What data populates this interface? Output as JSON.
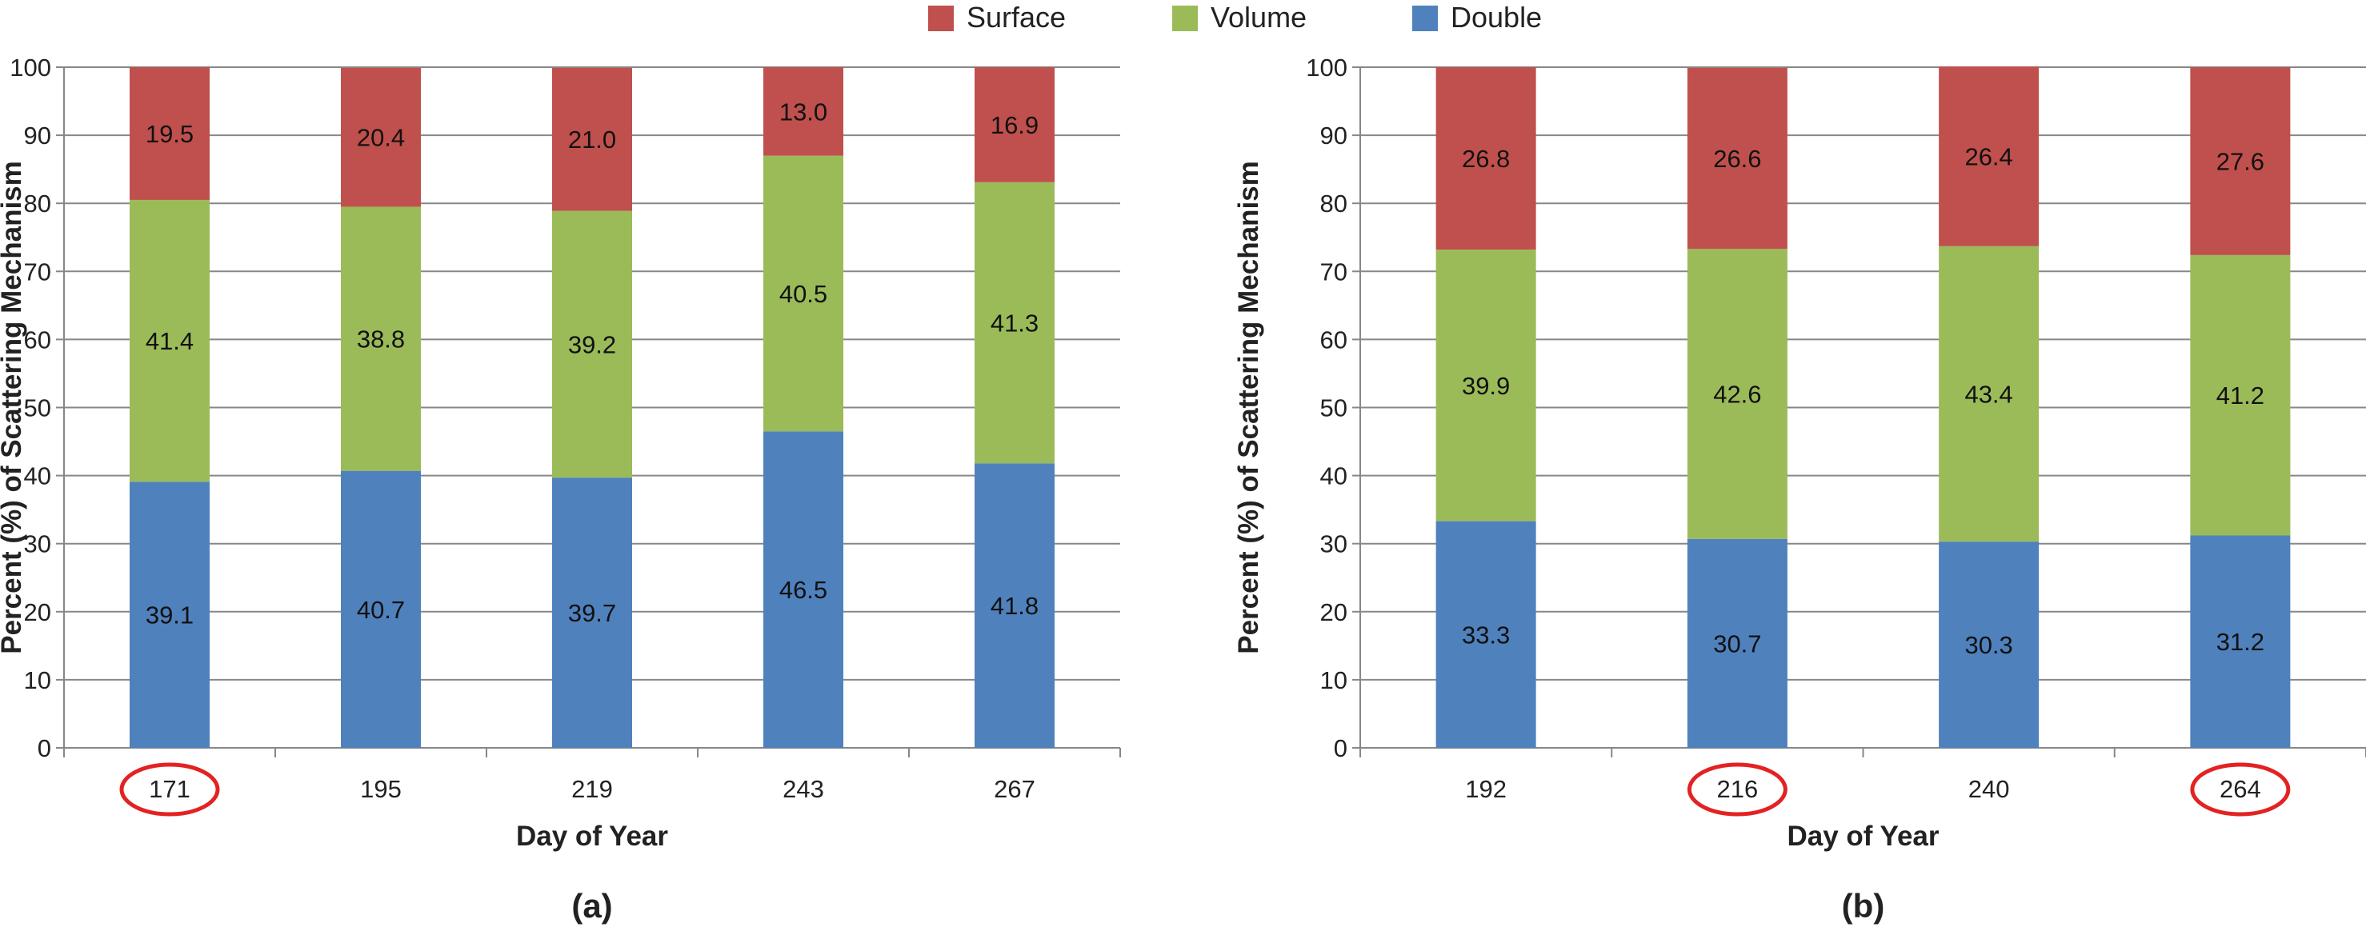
{
  "legend": {
    "entries": [
      {
        "name": "Surface",
        "color": "#C0504D"
      },
      {
        "name": "Volume",
        "color": "#9BBB59"
      },
      {
        "name": "Double",
        "color": "#4F81BD"
      }
    ],
    "placement": "top-center"
  },
  "colors": {
    "double": "#4F81BD",
    "volume": "#9BBB59",
    "surface": "#C0504D",
    "highlight_circle": "#E32222",
    "gridline": "#878787"
  },
  "chart_data": [
    {
      "type": "bar",
      "stacked": true,
      "panel_label": "(a)",
      "title": "",
      "xlabel": "Day of Year",
      "ylabel": "Percent (%) of Scattering Mechanism",
      "ylim": [
        0,
        100
      ],
      "yticks": [
        "0",
        "10",
        "20",
        "30",
        "40",
        "50",
        "60",
        "70",
        "80",
        "90",
        "100"
      ],
      "grid": true,
      "categories": [
        "171",
        "195",
        "219",
        "243",
        "267"
      ],
      "highlighted_categories": [
        "171"
      ],
      "series": [
        {
          "name": "Double",
          "values": [
            39.1,
            40.7,
            39.7,
            46.5,
            41.8
          ],
          "labels": [
            "39.1",
            "40.7",
            "39.7",
            "46.5",
            "41.8"
          ]
        },
        {
          "name": "Volume",
          "values": [
            41.4,
            38.8,
            39.2,
            40.5,
            41.3
          ],
          "labels": [
            "41.4",
            "38.8",
            "39.2",
            "40.5",
            "41.3"
          ]
        },
        {
          "name": "Surface",
          "values": [
            19.5,
            20.4,
            21.0,
            13.0,
            16.9
          ],
          "labels": [
            "19.5",
            "20.4",
            "21.0",
            "13.0",
            "16.9"
          ]
        }
      ]
    },
    {
      "type": "bar",
      "stacked": true,
      "panel_label": "(b)",
      "title": "",
      "xlabel": "Day of Year",
      "ylabel": "Percent (%) of Scattering Mechanism",
      "ylim": [
        0,
        100
      ],
      "yticks": [
        "0",
        "10",
        "20",
        "30",
        "40",
        "50",
        "60",
        "70",
        "80",
        "90",
        "100"
      ],
      "grid": true,
      "categories": [
        "192",
        "216",
        "240",
        "264"
      ],
      "highlighted_categories": [
        "216",
        "264"
      ],
      "series": [
        {
          "name": "Double",
          "values": [
            33.3,
            30.7,
            30.3,
            31.2
          ],
          "labels": [
            "33.3",
            "30.7",
            "30.3",
            "31.2"
          ]
        },
        {
          "name": "Volume",
          "values": [
            39.9,
            42.6,
            43.4,
            41.2
          ],
          "labels": [
            "39.9",
            "42.6",
            "43.4",
            "41.2"
          ]
        },
        {
          "name": "Surface",
          "values": [
            26.8,
            26.6,
            26.4,
            27.6
          ],
          "labels": [
            "26.8",
            "26.6",
            "26.4",
            "27.6"
          ]
        }
      ]
    }
  ]
}
